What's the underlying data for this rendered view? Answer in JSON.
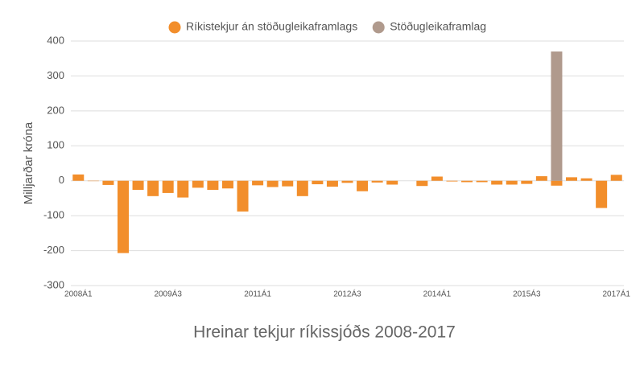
{
  "chart_data": {
    "type": "bar",
    "title": "Hreinar tekjur ríkissjóðs 2008-2017",
    "ylabel": "Milljarðar króna",
    "categories": [
      "2008Á1",
      null,
      null,
      null,
      null,
      null,
      "2009Á3",
      null,
      null,
      null,
      null,
      null,
      "2011Á1",
      null,
      null,
      null,
      null,
      null,
      "2012Á3",
      null,
      null,
      null,
      null,
      null,
      "2014Á1",
      null,
      null,
      null,
      null,
      null,
      "2015Á3",
      null,
      null,
      null,
      null,
      null,
      "2017Á1"
    ],
    "series": [
      {
        "name": "Ríkistekjur án stöðugleikaframlags",
        "color": "#f28e2b",
        "values": [
          18,
          -1,
          -12,
          -207,
          -26,
          -44,
          -35,
          -48,
          -20,
          -26,
          -22,
          -88,
          -13,
          -18,
          -16,
          -44,
          -10,
          -17,
          -6,
          -30,
          -5,
          -11,
          0,
          -15,
          12,
          -2,
          -4,
          -4,
          -11,
          -11,
          -9,
          13,
          -14,
          10,
          7,
          -78,
          17
        ]
      },
      {
        "name": "Stöðugleikaframlag",
        "color": "#b09a8d",
        "values": [
          null,
          null,
          null,
          null,
          null,
          null,
          null,
          null,
          null,
          null,
          null,
          null,
          null,
          null,
          null,
          null,
          null,
          null,
          null,
          null,
          null,
          null,
          null,
          null,
          null,
          null,
          null,
          null,
          null,
          null,
          null,
          null,
          370,
          null,
          null,
          null,
          null
        ]
      }
    ],
    "ylim": [
      -300,
      400
    ],
    "yticks": [
      -300,
      -200,
      -100,
      0,
      100,
      200,
      300,
      400
    ],
    "grid": true,
    "stacked": true,
    "legend": "top"
  }
}
